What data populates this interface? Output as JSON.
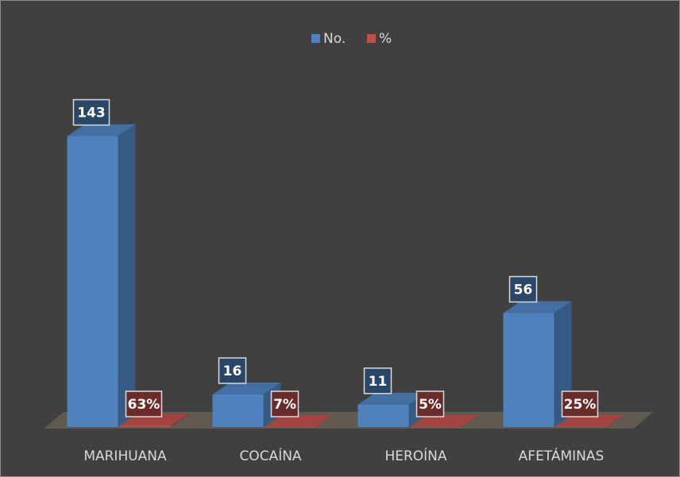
{
  "chart_data": {
    "type": "bar3d",
    "categories": [
      "MARIHUANA",
      "COCAÍNA",
      "HEROÍNA",
      "AFETÁMINAS"
    ],
    "series": [
      {
        "name": "No.",
        "color": "#4f81bd",
        "values": [
          143,
          16,
          11,
          56
        ]
      },
      {
        "name": "%",
        "color": "#c0504d",
        "values": [
          0.63,
          0.07,
          0.05,
          0.25
        ],
        "value_labels": [
          "63%",
          "7%",
          "5%",
          "25%"
        ]
      }
    ],
    "ylim": [
      0,
      160
    ],
    "legend": "top"
  }
}
